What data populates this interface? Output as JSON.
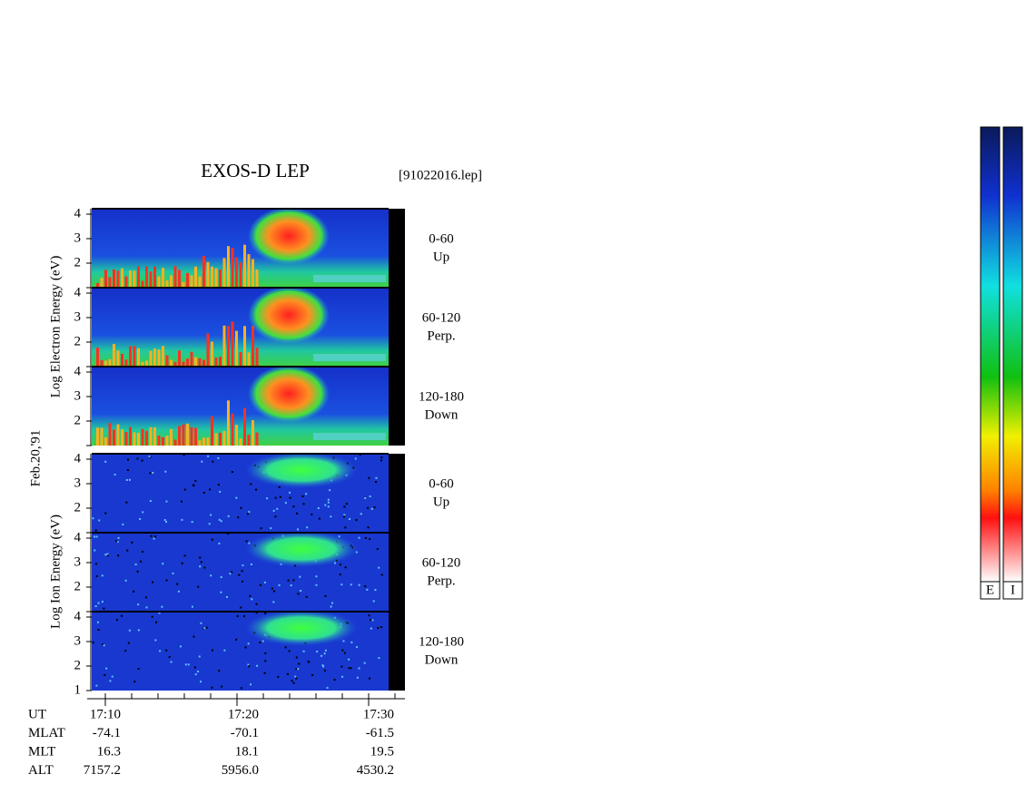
{
  "title": "EXOS-D LEP",
  "file": "[91022016.lep]",
  "date": "Feb.20,'91",
  "yticks": [
    1,
    2,
    3,
    4
  ],
  "electron": {
    "axis_label": "Log Electron Energy (eV)",
    "panels": [
      {
        "angle": "0-60",
        "direction": "Up"
      },
      {
        "angle": "60-120",
        "direction": "Perp."
      },
      {
        "angle": "120-180",
        "direction": "Down"
      }
    ]
  },
  "ion": {
    "axis_label": "Log Ion Energy (eV)",
    "panels": [
      {
        "angle": "0-60",
        "direction": "Up"
      },
      {
        "angle": "60-120",
        "direction": "Perp."
      },
      {
        "angle": "120-180",
        "direction": "Down"
      }
    ]
  },
  "orbit": {
    "rows": [
      {
        "label": "UT",
        "values": [
          "17:10",
          "17:20",
          "17:30"
        ]
      },
      {
        "label": "MLAT",
        "values": [
          "-74.1",
          "-70.1",
          "-61.5"
        ]
      },
      {
        "label": "MLT",
        "values": [
          "16.3",
          "18.1",
          "19.5"
        ]
      },
      {
        "label": "ALT",
        "values": [
          "7157.2",
          "5956.0",
          "4530.2"
        ]
      }
    ]
  },
  "colorbars": [
    "E",
    "I"
  ]
}
